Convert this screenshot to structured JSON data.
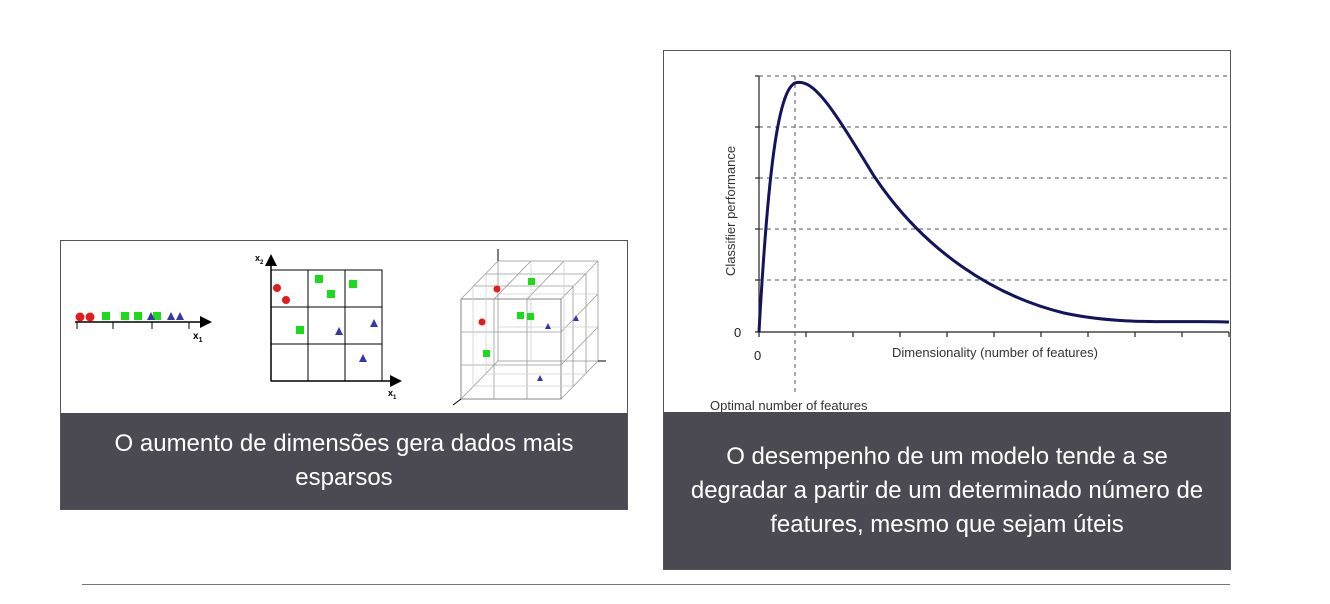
{
  "left_panel": {
    "caption": "O aumento de dimensões gera dados mais esparsos",
    "axis_x1": "x",
    "axis_x1_sub": "1",
    "axis_x2": "x",
    "axis_x2_sub": "2",
    "colors": {
      "red": "#e21b1b",
      "green": "#1bdc1b",
      "blue": "#3535b0"
    }
  },
  "right_panel": {
    "caption": "O desempenho de um modelo tende a se degradar a partir de um determinado número de features, mesmo que sejam úteis",
    "chart_data": {
      "type": "line",
      "ylabel": "Classifier performance",
      "xlabel": "Dimensionality (number of features)",
      "annotation": "Optimal number of features",
      "x_origin_label": "0",
      "y_origin_label": "0",
      "grid": "horizontal dashed",
      "curve_color": "#14145e",
      "peak_at_x_fraction": 0.08
    }
  }
}
